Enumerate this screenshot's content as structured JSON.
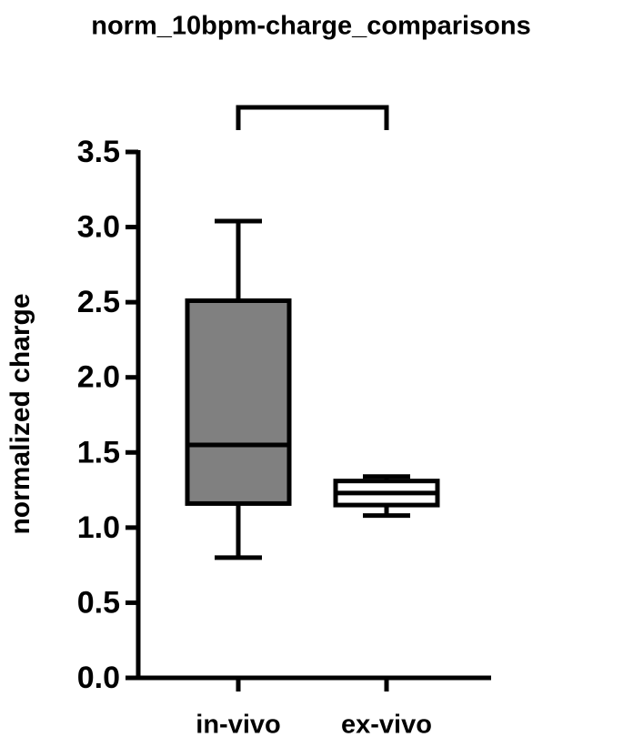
{
  "chart_data": {
    "type": "box",
    "title": "norm_10bpm-charge_comparisons",
    "y_label": "normalized charge",
    "categories": [
      "in-vivo",
      "ex-vivo"
    ],
    "boxes": [
      {
        "min": 0.8,
        "q1": 1.16,
        "median": 1.55,
        "q3": 2.51,
        "max": 3.04,
        "color": "#808080"
      },
      {
        "min": 1.08,
        "q1": 1.15,
        "median": 1.23,
        "q3": 1.31,
        "max": 1.34,
        "color": "#ffffff"
      }
    ],
    "ylim": [
      0,
      3.5
    ],
    "yticks": [
      {
        "value": 0,
        "label": "0.0"
      },
      0.5,
      {
        "value": 1,
        "label": "1.0"
      },
      1.5,
      {
        "value": 2,
        "label": "2.0"
      },
      2.5,
      {
        "value": 3,
        "label": "3.0"
      },
      3.5
    ]
  }
}
